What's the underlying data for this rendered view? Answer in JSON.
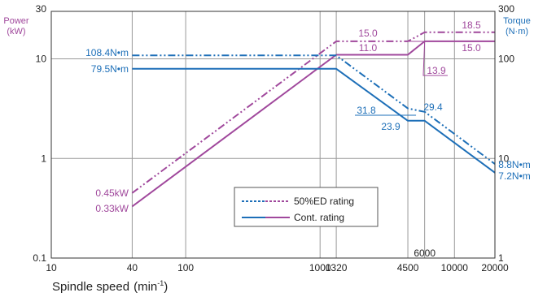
{
  "chart_data": {
    "type": "line",
    "x_scale": "log",
    "y_scale": "log",
    "xlim": [
      10,
      20000
    ],
    "ylim": [
      0.1,
      30
    ],
    "y2lim": [
      1,
      300
    ],
    "grid": true,
    "xlabel": "Spindle speed",
    "xlabel_unit_base": "min",
    "xlabel_unit_exp": "-1",
    "ylabel_left": "Power",
    "ylabel_left_unit": "(kW)",
    "ylabel_right": "Torque",
    "ylabel_right_unit": "(N·m)",
    "x_ticks": [
      {
        "value": 10,
        "label": "10"
      },
      {
        "value": 40,
        "label": "40"
      },
      {
        "value": 100,
        "label": "100"
      },
      {
        "value": 1000,
        "label": "1000"
      },
      {
        "value": 1320,
        "label": "1320"
      },
      {
        "value": 4500,
        "label": "4500"
      },
      {
        "value": 10000,
        "label": "10000"
      },
      {
        "value": 20000,
        "label": "20000"
      }
    ],
    "x_extra_label": {
      "value": 6000,
      "label": "6000"
    },
    "x_gridlines": [
      40,
      100,
      1000,
      1320,
      4500,
      6000,
      10000
    ],
    "y_ticks_left": [
      {
        "value": 30,
        "label": "30"
      },
      {
        "value": 10,
        "label": "10"
      },
      {
        "value": 1,
        "label": "1"
      },
      {
        "value": 0.1,
        "label": "0.1"
      }
    ],
    "y_ticks_right": [
      {
        "value": 300,
        "label": "300"
      },
      {
        "value": 100,
        "label": "100"
      },
      {
        "value": 10,
        "label": "10"
      },
      {
        "value": 1,
        "label": "1"
      }
    ],
    "y_gridlines": [
      10,
      1
    ],
    "legend": {
      "placement": "lower-center",
      "entries": [
        {
          "name": "50%ED rating",
          "style": "dashed"
        },
        {
          "name": "Cont. rating",
          "style": "solid"
        }
      ]
    },
    "colors": {
      "power": "#a0489c",
      "torque": "#1d6fb8",
      "grid": "#999999",
      "axis": "#333333"
    },
    "series": [
      {
        "id": "power_ed",
        "quantity": "power",
        "rating": "50%ED",
        "style": "dashdot",
        "x": [
          40,
          1320,
          4500,
          6000,
          20000
        ],
        "y": [
          0.45,
          15.0,
          15.0,
          18.5,
          18.5
        ]
      },
      {
        "id": "power_cont",
        "quantity": "power",
        "rating": "Cont.",
        "style": "solid",
        "x": [
          40,
          1320,
          4500,
          6000,
          20000
        ],
        "y": [
          0.33,
          11.0,
          11.0,
          15.0,
          15.0
        ]
      },
      {
        "id": "torque_ed",
        "quantity": "torque",
        "rating": "50%ED",
        "style": "dashdot",
        "x": [
          40,
          1320,
          4500,
          6000,
          20000
        ],
        "y": [
          108.4,
          108.4,
          31.8,
          29.4,
          8.8
        ]
      },
      {
        "id": "torque_cont",
        "quantity": "torque",
        "rating": "Cont.",
        "style": "solid",
        "x": [
          40,
          1320,
          4500,
          6000,
          20000
        ],
        "y": [
          79.5,
          79.5,
          23.9,
          23.9,
          7.2
        ]
      }
    ],
    "annotations": [
      {
        "id": "ann-power-045",
        "text": "0.45kW",
        "color": "power"
      },
      {
        "id": "ann-power-033",
        "text": "0.33kW",
        "color": "power"
      },
      {
        "id": "ann-power-150",
        "text": "15.0",
        "color": "power"
      },
      {
        "id": "ann-power-110",
        "text": "11.0",
        "color": "power"
      },
      {
        "id": "ann-power-185",
        "text": "18.5",
        "color": "power"
      },
      {
        "id": "ann-power-150b",
        "text": "15.0",
        "color": "power"
      },
      {
        "id": "ann-power-139",
        "text": "13.9",
        "color": "power"
      },
      {
        "id": "ann-torque-1084",
        "text": "108.4N•m",
        "color": "torque"
      },
      {
        "id": "ann-torque-795",
        "text": "79.5N•m",
        "color": "torque"
      },
      {
        "id": "ann-torque-318",
        "text": "31.8",
        "color": "torque"
      },
      {
        "id": "ann-torque-239",
        "text": "23.9",
        "color": "torque"
      },
      {
        "id": "ann-torque-294",
        "text": "29.4",
        "color": "torque"
      },
      {
        "id": "ann-torque-88",
        "text": "8.8N•m",
        "color": "torque"
      },
      {
        "id": "ann-torque-72",
        "text": "7.2N•m",
        "color": "torque"
      }
    ]
  }
}
